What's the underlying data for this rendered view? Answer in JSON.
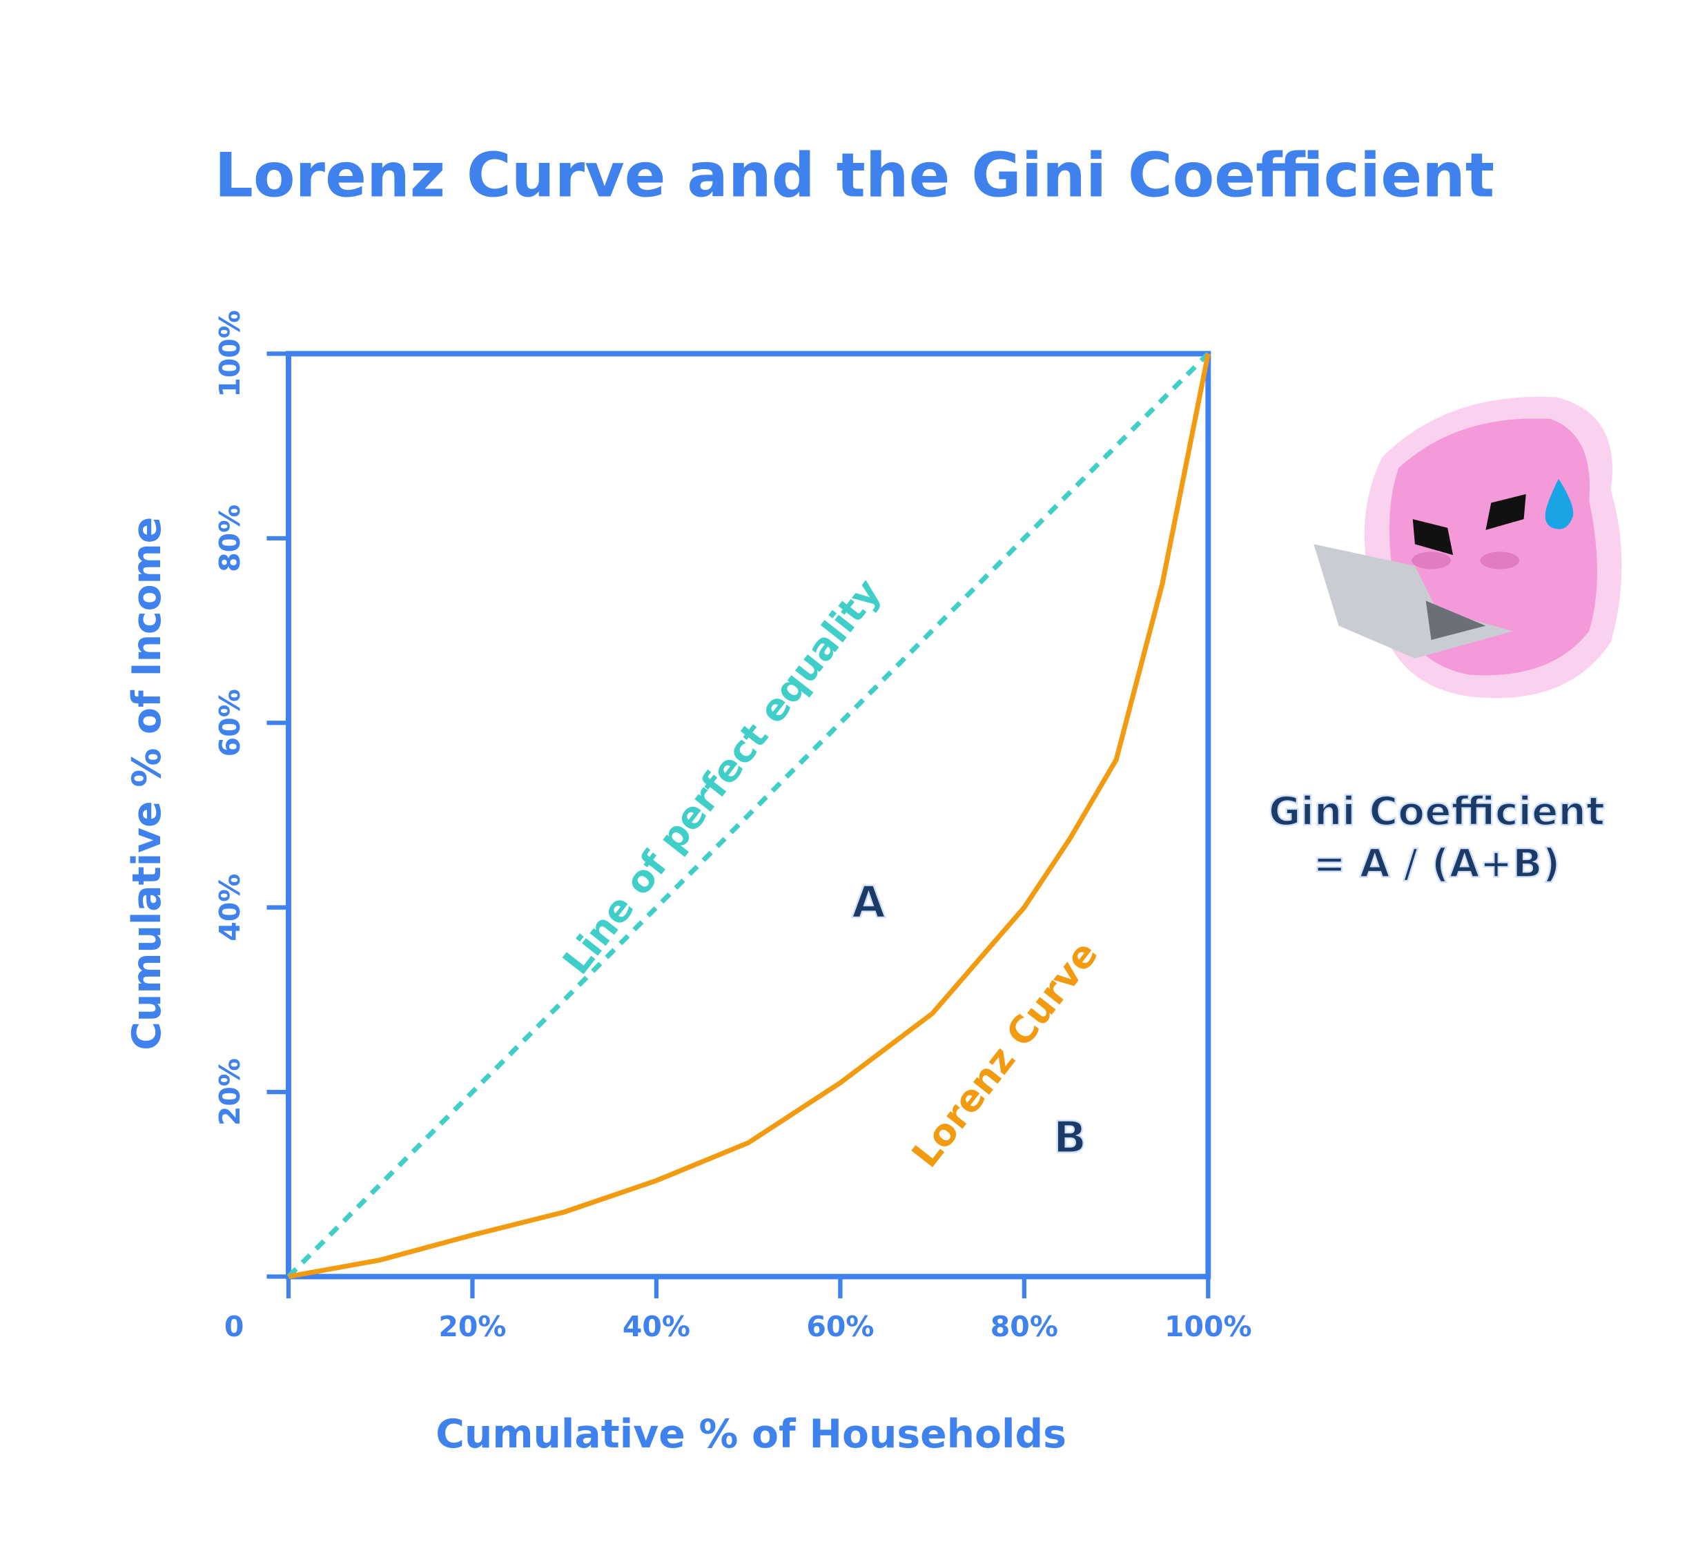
{
  "chart_data": {
    "type": "line",
    "title": "Lorenz Curve and the Gini Coefficient",
    "x_label": "Cumulative % of Households",
    "y_label": "Cumulative % of Income",
    "xlim": [
      0,
      100
    ],
    "ylim": [
      0,
      100
    ],
    "xticks": [
      0,
      {
        "value": 20,
        "label": "20%"
      },
      {
        "value": 40,
        "label": "40%"
      },
      {
        "value": 60,
        "label": "60%"
      },
      {
        "value": 80,
        "label": "80%"
      },
      {
        "value": 100,
        "label": "100%"
      }
    ],
    "yticks": [
      {
        "value": 20,
        "label": "20%"
      },
      {
        "value": 40,
        "label": "40%"
      },
      {
        "value": 60,
        "label": "60%"
      },
      {
        "value": 80,
        "label": "80%"
      },
      {
        "value": 100,
        "label": "100%"
      }
    ],
    "series": [
      {
        "name": "Line of perfect equality",
        "color": "#3fcfc8",
        "dashed": true,
        "x": [
          0,
          100
        ],
        "values": [
          0,
          100
        ]
      },
      {
        "name": "Lorenz Curve",
        "color": "#f29b11",
        "dashed": false,
        "x": [
          0,
          10,
          20,
          30,
          40,
          50,
          60,
          70,
          80,
          85,
          90,
          95,
          100
        ],
        "values": [
          0,
          1.8,
          4.5,
          7,
          10.4,
          14.5,
          21,
          28.5,
          40,
          47.5,
          56,
          75,
          100
        ]
      }
    ],
    "annotations": [
      "A",
      "B"
    ],
    "formula": [
      "Gini Coefficient",
      "= A / (A+B)"
    ]
  }
}
